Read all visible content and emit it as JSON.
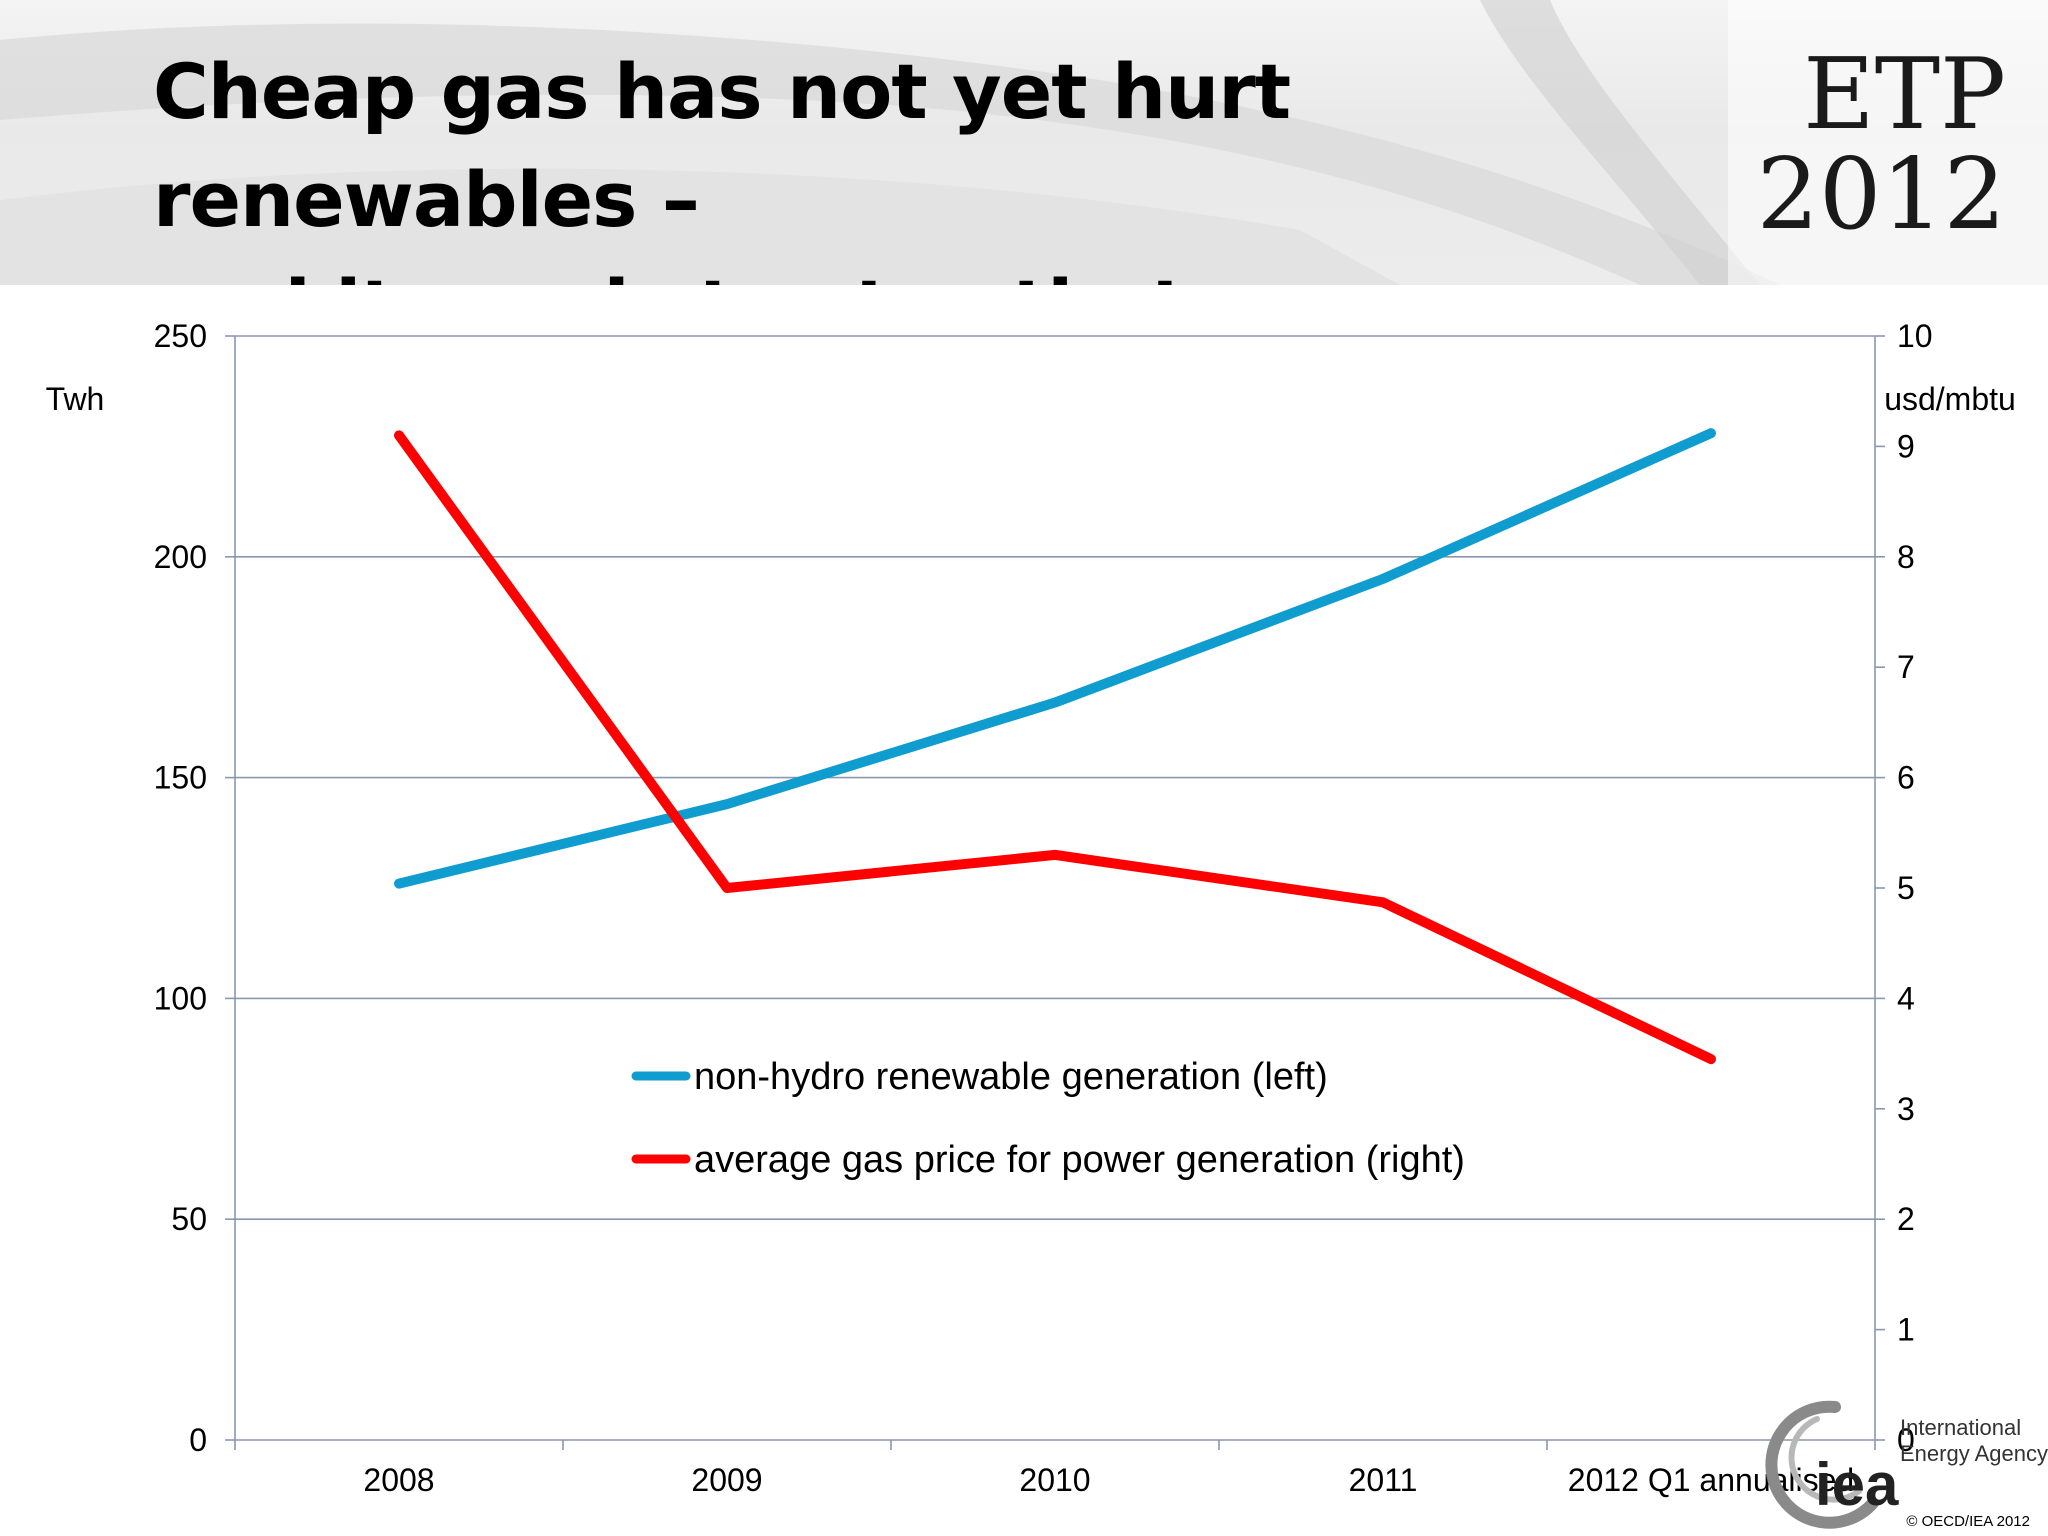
{
  "slide": {
    "title": "Cheap gas has not yet hurt renewables –\nand it needs to stay that way",
    "badge_line1": "ETP",
    "badge_line2": "2012",
    "org_name": "International\nEnergy Agency",
    "org_short": "iea",
    "copyright": "© OECD/IEA 2012"
  },
  "chart_data": {
    "type": "line",
    "title": "",
    "categories": [
      "2008",
      "2009",
      "2010",
      "2011",
      "2012 Q1 annualised"
    ],
    "y_left": {
      "label": "Twh",
      "min": 0,
      "max": 250,
      "ticks": [
        0,
        50,
        100,
        150,
        200,
        250
      ]
    },
    "y_right": {
      "label": "usd/mbtu",
      "min": 0,
      "max": 10,
      "ticks": [
        0,
        1,
        2,
        3,
        4,
        5,
        6,
        7,
        8,
        9,
        10
      ]
    },
    "grid": true,
    "legend": "center",
    "series": [
      {
        "name": "non-hydro renewable generation (left)",
        "axis": "left",
        "color": "#0f9ccf",
        "values": [
          126,
          144,
          167,
          195,
          228
        ]
      },
      {
        "name": "average gas price for power generation (right)",
        "axis": "right",
        "color": "#ff0000",
        "values": [
          9.1,
          5.0,
          5.3,
          4.87,
          3.45
        ]
      }
    ]
  }
}
